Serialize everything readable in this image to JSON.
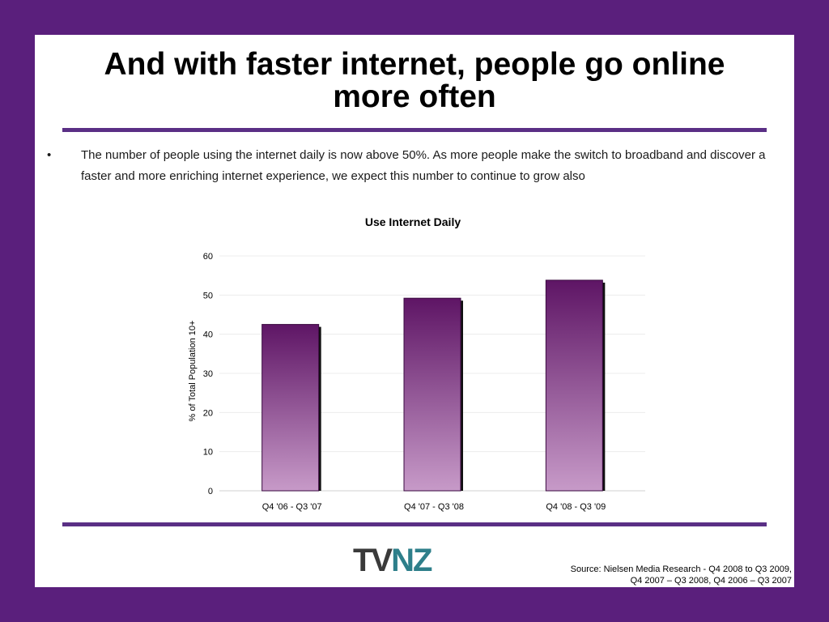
{
  "slide": {
    "title_line1": "And with faster internet, people go online",
    "title_line2": "more often",
    "bullet_char": "•",
    "bullet_text": "The number of people using the internet daily is now above 50%.  As more people make the switch to broadband and discover a faster and more enriching internet experience, we expect this number to continue to grow also",
    "source_line1": "Source: Nielsen Media Research - Q4 2008 to Q3 2009,",
    "source_line2": "Q4 2007 – Q3 2008, Q4 2006 – Q3 2007",
    "logo_text": "TVNZ"
  },
  "colors": {
    "frame": "#5a1f7c",
    "rule": "#5a2f85",
    "bar_top": "#5e1565",
    "bar_bottom": "#c79ac8"
  },
  "chart_data": {
    "type": "bar",
    "title": "Use Internet Daily",
    "xlabel": "",
    "ylabel": "% of Total Population 10+",
    "categories": [
      "Q4 '06 - Q3 '07",
      "Q4 '07 - Q3 '08",
      "Q4 '08 - Q3 '09"
    ],
    "values": [
      42.5,
      49.2,
      53.8
    ],
    "ylim": [
      0,
      60
    ],
    "yticks": [
      0,
      10,
      20,
      30,
      40,
      50,
      60
    ],
    "grid": true,
    "legend": "none"
  }
}
